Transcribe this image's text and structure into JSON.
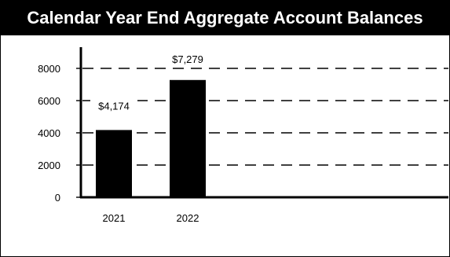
{
  "chart_data": {
    "type": "bar",
    "title": "Calendar Year End Aggregate Account Balances",
    "categories": [
      "2021",
      "2022"
    ],
    "values": [
      4174,
      7279
    ],
    "data_labels": [
      "$4,174",
      "$7,279"
    ],
    "yticks": [
      0,
      2000,
      4000,
      6000,
      8000
    ],
    "ytick_labels": [
      "0",
      "2000",
      "4000",
      "6000",
      "8000"
    ],
    "ylim": [
      0,
      9000
    ],
    "grid": true,
    "grid_style": "dashed",
    "legend": false,
    "bar_color": "#000000",
    "xlabel": "",
    "ylabel": ""
  },
  "colors": {
    "title_background": "#000000",
    "title_text": "#ffffff",
    "axis": "#000000",
    "gridline": "#000000"
  }
}
